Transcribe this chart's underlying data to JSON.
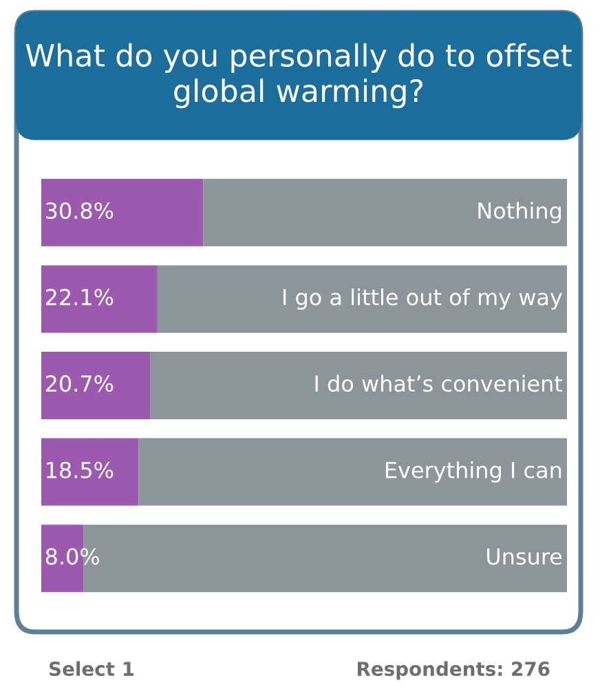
{
  "chart_data": {
    "type": "bar",
    "orientation": "horizontal",
    "stacked": true,
    "title": "What do you personally do to offset global warming?",
    "categories": [
      "Nothing",
      "I go a little out of my way",
      "I do what’s convenient",
      "Everything I can",
      "Unsure"
    ],
    "series": [
      {
        "color": "#9b5aae",
        "values": [
          30.8,
          22.1,
          20.7,
          18.5,
          8.0
        ],
        "value_labels": [
          "30.8%",
          "22.1%",
          "20.7%",
          "18.5%",
          "8.0%"
        ]
      },
      {
        "color": "#8c9599",
        "values": [
          69.2,
          77.9,
          79.3,
          81.5,
          92.0
        ]
      }
    ],
    "xlim": [
      0,
      100
    ],
    "annotations": [
      "Select 1",
      "Respondents: 276"
    ]
  }
}
